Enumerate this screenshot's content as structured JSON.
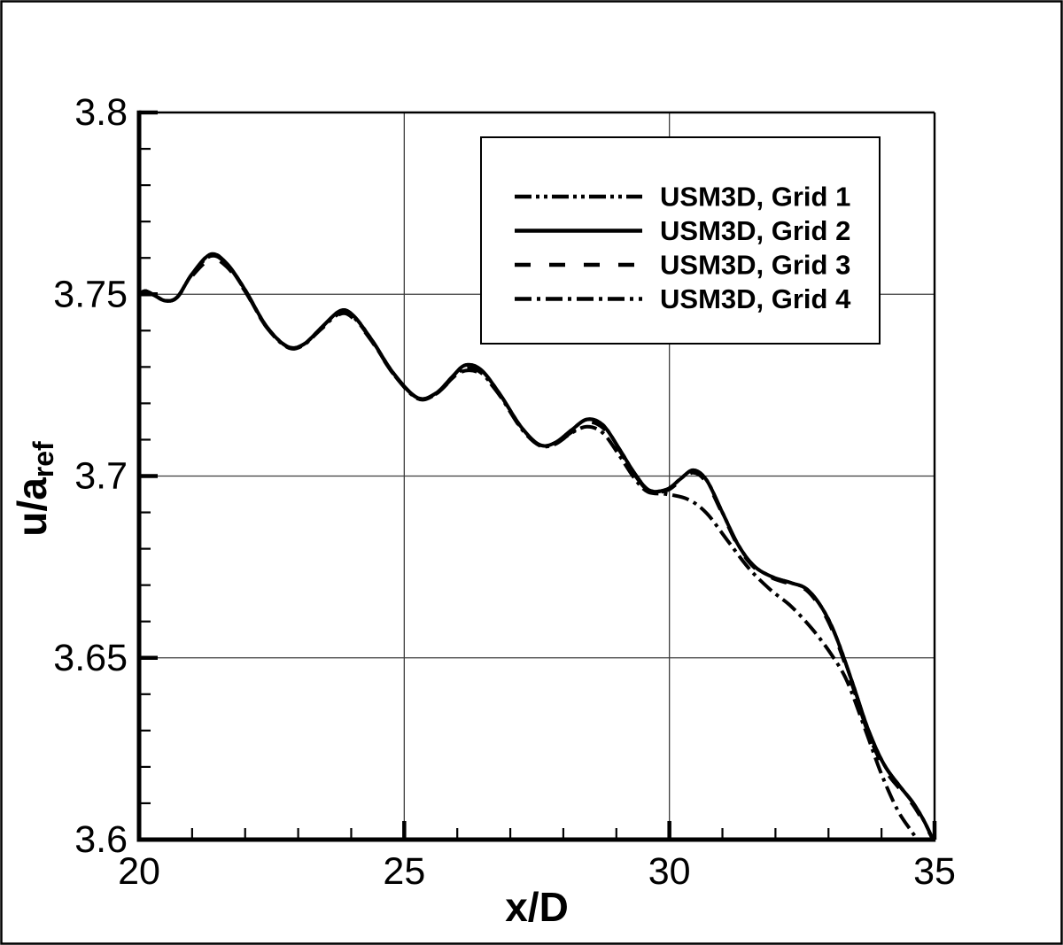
{
  "colors": {
    "ink": "#000000",
    "gridline": "#3d3d3d",
    "background": "#ffffff"
  },
  "chart_data": {
    "type": "line",
    "title": "",
    "xlabel": "x/D",
    "ylabel_main": "u/a",
    "ylabel_sub": "ref",
    "xlim": [
      20,
      35
    ],
    "ylim": [
      3.6,
      3.8
    ],
    "x_major_ticks": [
      20,
      25,
      30,
      35
    ],
    "x_tick_labels": [
      "20",
      "25",
      "30",
      "35"
    ],
    "x_minor_step": 1,
    "y_major_ticks": [
      3.6,
      3.65,
      3.7,
      3.75,
      3.8
    ],
    "y_tick_labels": [
      "3.6",
      "3.65",
      "3.7",
      "3.75",
      "3.8"
    ],
    "y_minor_step": 0.01,
    "grid": true,
    "legend_position": "top-center",
    "series": [
      {
        "name": "USM3D, Grid 1",
        "line_style": "dash-dot-dot",
        "points": [
          [
            20.0,
            3.75
          ],
          [
            20.12,
            3.7509
          ],
          [
            20.3,
            3.7496
          ],
          [
            20.5,
            3.7482
          ],
          [
            20.72,
            3.7492
          ],
          [
            21.0,
            3.7556
          ],
          [
            21.35,
            3.761
          ],
          [
            21.65,
            3.7585
          ],
          [
            22.0,
            3.7512
          ],
          [
            22.4,
            3.7412
          ],
          [
            22.8,
            3.7356
          ],
          [
            23.1,
            3.7362
          ],
          [
            23.45,
            3.741
          ],
          [
            23.8,
            3.7455
          ],
          [
            24.05,
            3.744
          ],
          [
            24.4,
            3.7372
          ],
          [
            24.8,
            3.7282
          ],
          [
            25.25,
            3.7215
          ],
          [
            25.6,
            3.7228
          ],
          [
            25.9,
            3.7272
          ],
          [
            26.15,
            3.7305
          ],
          [
            26.45,
            3.7292
          ],
          [
            26.8,
            3.7226
          ],
          [
            27.2,
            3.7136
          ],
          [
            27.55,
            3.7086
          ],
          [
            27.85,
            3.7092
          ],
          [
            28.15,
            3.7126
          ],
          [
            28.45,
            3.7156
          ],
          [
            28.75,
            3.714
          ],
          [
            29.05,
            3.7076
          ],
          [
            29.35,
            3.7006
          ],
          [
            29.62,
            3.6961
          ],
          [
            29.95,
            3.6963
          ],
          [
            30.2,
            3.6991
          ],
          [
            30.45,
            3.7016
          ],
          [
            30.7,
            3.6989
          ],
          [
            31.0,
            3.69
          ],
          [
            31.3,
            3.681
          ],
          [
            31.6,
            3.6752
          ],
          [
            31.95,
            3.6722
          ],
          [
            32.3,
            3.6706
          ],
          [
            32.6,
            3.6688
          ],
          [
            32.9,
            3.6632
          ],
          [
            33.15,
            3.6556
          ],
          [
            33.45,
            3.6432
          ],
          [
            33.75,
            3.6302
          ],
          [
            34.05,
            3.6206
          ],
          [
            34.35,
            3.6146
          ],
          [
            34.6,
            3.61
          ],
          [
            34.8,
            3.6052
          ],
          [
            34.97,
            3.6
          ]
        ]
      },
      {
        "name": "USM3D, Grid 2",
        "line_style": "solid",
        "points": [
          [
            20.0,
            3.75
          ],
          [
            20.12,
            3.7509
          ],
          [
            20.3,
            3.7496
          ],
          [
            20.5,
            3.7482
          ],
          [
            20.72,
            3.7492
          ],
          [
            21.0,
            3.7556
          ],
          [
            21.35,
            3.761
          ],
          [
            21.65,
            3.7585
          ],
          [
            22.0,
            3.7512
          ],
          [
            22.4,
            3.7412
          ],
          [
            22.8,
            3.7356
          ],
          [
            23.1,
            3.7362
          ],
          [
            23.45,
            3.741
          ],
          [
            23.8,
            3.7455
          ],
          [
            24.05,
            3.744
          ],
          [
            24.4,
            3.7372
          ],
          [
            24.8,
            3.7282
          ],
          [
            25.25,
            3.7215
          ],
          [
            25.6,
            3.7228
          ],
          [
            25.9,
            3.7272
          ],
          [
            26.15,
            3.7305
          ],
          [
            26.45,
            3.7292
          ],
          [
            26.8,
            3.7226
          ],
          [
            27.2,
            3.7136
          ],
          [
            27.55,
            3.7086
          ],
          [
            27.85,
            3.7092
          ],
          [
            28.15,
            3.7126
          ],
          [
            28.45,
            3.7156
          ],
          [
            28.75,
            3.714
          ],
          [
            29.05,
            3.7076
          ],
          [
            29.35,
            3.7006
          ],
          [
            29.62,
            3.6961
          ],
          [
            29.95,
            3.6963
          ],
          [
            30.2,
            3.6991
          ],
          [
            30.45,
            3.7016
          ],
          [
            30.7,
            3.6989
          ],
          [
            31.0,
            3.69
          ],
          [
            31.3,
            3.681
          ],
          [
            31.6,
            3.6752
          ],
          [
            31.95,
            3.6722
          ],
          [
            32.3,
            3.6706
          ],
          [
            32.6,
            3.6688
          ],
          [
            32.9,
            3.6632
          ],
          [
            33.15,
            3.6556
          ],
          [
            33.45,
            3.6432
          ],
          [
            33.75,
            3.6302
          ],
          [
            34.05,
            3.6206
          ],
          [
            34.35,
            3.6146
          ],
          [
            34.6,
            3.61
          ],
          [
            34.8,
            3.6052
          ],
          [
            34.97,
            3.6
          ]
        ]
      },
      {
        "name": "USM3D, Grid 3",
        "line_style": "dashed",
        "points": [
          [
            20.0,
            3.75
          ],
          [
            20.12,
            3.7509
          ],
          [
            20.3,
            3.7496
          ],
          [
            20.5,
            3.7482
          ],
          [
            20.72,
            3.7492
          ],
          [
            21.0,
            3.755
          ],
          [
            21.35,
            3.7596
          ],
          [
            21.65,
            3.7576
          ],
          [
            22.0,
            3.7508
          ],
          [
            22.4,
            3.741
          ],
          [
            22.8,
            3.7356
          ],
          [
            23.1,
            3.7362
          ],
          [
            23.45,
            3.7406
          ],
          [
            23.8,
            3.7446
          ],
          [
            24.05,
            3.7432
          ],
          [
            24.4,
            3.7368
          ],
          [
            24.8,
            3.728
          ],
          [
            25.25,
            3.7215
          ],
          [
            25.6,
            3.7226
          ],
          [
            25.9,
            3.7266
          ],
          [
            26.15,
            3.729
          ],
          [
            26.45,
            3.728
          ],
          [
            26.8,
            3.7222
          ],
          [
            27.2,
            3.7134
          ],
          [
            27.55,
            3.7086
          ],
          [
            27.85,
            3.709
          ],
          [
            28.15,
            3.712
          ],
          [
            28.45,
            3.7148
          ],
          [
            28.75,
            3.7132
          ],
          [
            29.05,
            3.7072
          ],
          [
            29.35,
            3.7002
          ],
          [
            29.62,
            3.6959
          ],
          [
            29.95,
            3.696
          ],
          [
            30.2,
            3.6986
          ],
          [
            30.45,
            3.7009
          ],
          [
            30.7,
            3.6982
          ],
          [
            31.0,
            3.6896
          ],
          [
            31.3,
            3.6806
          ],
          [
            31.6,
            3.6748
          ],
          [
            31.95,
            3.6719
          ],
          [
            32.3,
            3.6702
          ],
          [
            32.6,
            3.6684
          ],
          [
            32.9,
            3.6626
          ],
          [
            33.15,
            3.6548
          ],
          [
            33.45,
            3.6424
          ],
          [
            33.75,
            3.6292
          ],
          [
            34.05,
            3.6196
          ],
          [
            34.35,
            3.6138
          ],
          [
            34.6,
            3.6094
          ],
          [
            34.8,
            3.6046
          ],
          [
            34.97,
            3.6
          ]
        ]
      },
      {
        "name": "USM3D, Grid 4",
        "line_style": "dash-dot",
        "points": [
          [
            20.0,
            3.75
          ],
          [
            20.12,
            3.7509
          ],
          [
            20.3,
            3.7496
          ],
          [
            20.5,
            3.7482
          ],
          [
            20.72,
            3.7492
          ],
          [
            21.0,
            3.7556
          ],
          [
            21.35,
            3.7605
          ],
          [
            21.65,
            3.7583
          ],
          [
            22.0,
            3.751
          ],
          [
            22.4,
            3.741
          ],
          [
            22.8,
            3.7354
          ],
          [
            23.1,
            3.736
          ],
          [
            23.45,
            3.7408
          ],
          [
            23.8,
            3.7448
          ],
          [
            24.05,
            3.7436
          ],
          [
            24.4,
            3.737
          ],
          [
            24.8,
            3.728
          ],
          [
            25.25,
            3.7213
          ],
          [
            25.6,
            3.7226
          ],
          [
            25.9,
            3.7268
          ],
          [
            26.15,
            3.7296
          ],
          [
            26.45,
            3.7284
          ],
          [
            26.8,
            3.7222
          ],
          [
            27.2,
            3.7132
          ],
          [
            27.55,
            3.7084
          ],
          [
            27.85,
            3.7088
          ],
          [
            28.15,
            3.7118
          ],
          [
            28.45,
            3.7136
          ],
          [
            28.75,
            3.7118
          ],
          [
            29.05,
            3.7058
          ],
          [
            29.35,
            3.6992
          ],
          [
            29.6,
            3.6956
          ],
          [
            29.95,
            3.695
          ],
          [
            30.35,
            3.6936
          ],
          [
            30.7,
            3.6898
          ],
          [
            31.1,
            3.6822
          ],
          [
            31.5,
            3.6746
          ],
          [
            31.9,
            3.6688
          ],
          [
            32.3,
            3.6641
          ],
          [
            32.7,
            3.6578
          ],
          [
            33.05,
            3.651
          ],
          [
            33.35,
            3.6436
          ],
          [
            33.7,
            3.63
          ],
          [
            34.0,
            3.618
          ],
          [
            34.3,
            3.6082
          ],
          [
            34.55,
            3.6026
          ],
          [
            34.68,
            3.6
          ]
        ]
      }
    ]
  }
}
